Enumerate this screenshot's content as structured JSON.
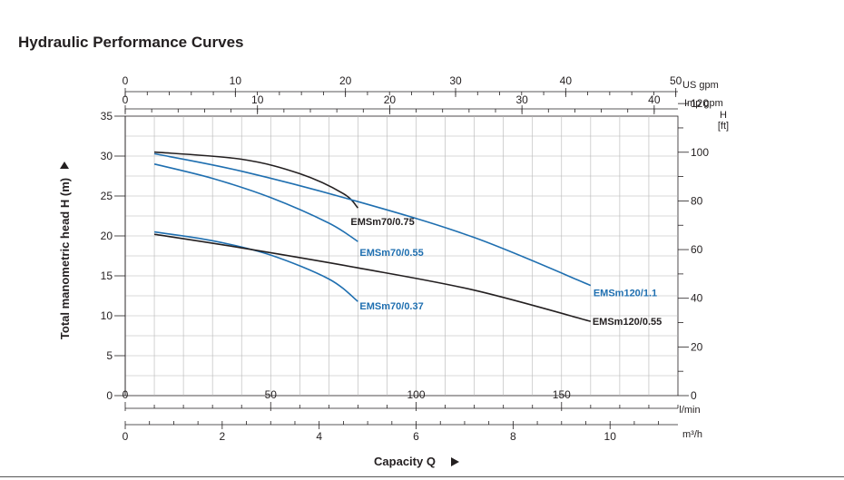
{
  "title": "Hydraulic Performance Curves",
  "chart_data": {
    "type": "line",
    "title": "Hydraulic Performance Curves",
    "xlabel": "Capacity Q",
    "ylabel": "Total manometric head H (m)",
    "xunit": "l/min",
    "xlim": [
      0,
      190
    ],
    "ylim": [
      0,
      35
    ],
    "y_right_label": "H",
    "y_right_unit": "[ft]",
    "grid": true,
    "x_ticks": [
      0,
      50,
      100,
      150
    ],
    "y_ticks": [
      0,
      5,
      10,
      15,
      20,
      25,
      30,
      35
    ],
    "secondary_axes": {
      "us_gpm": {
        "unit": "US gpm",
        "ticks": [
          0,
          10,
          20,
          30,
          40,
          50
        ]
      },
      "imp_gpm": {
        "unit": "Imp gpm",
        "ticks": [
          0,
          10,
          20,
          30,
          40
        ]
      },
      "m3h": {
        "unit": "m³/h",
        "ticks": [
          0,
          2,
          4,
          6,
          8,
          10
        ]
      },
      "feet": {
        "ticks": [
          0,
          20,
          40,
          60,
          80,
          100,
          120
        ]
      }
    },
    "series": [
      {
        "name": "EMSm70/0.75",
        "color": "#231f20",
        "x": [
          10,
          40,
          60,
          75,
          80
        ],
        "y": [
          30.5,
          29.6,
          27.8,
          25.3,
          23.5
        ]
      },
      {
        "name": "EMSm70/0.55",
        "color": "#1f6fb0",
        "x": [
          10,
          30,
          50,
          70,
          80
        ],
        "y": [
          29.0,
          27.2,
          24.8,
          21.6,
          19.3
        ]
      },
      {
        "name": "EMSm70/0.37",
        "color": "#1f6fb0",
        "x": [
          10,
          30,
          50,
          70,
          80
        ],
        "y": [
          20.5,
          19.4,
          17.6,
          14.6,
          11.8
        ]
      },
      {
        "name": "EMSm120/1.1",
        "color": "#1f6fb0",
        "x": [
          10,
          40,
          80,
          120,
          160
        ],
        "y": [
          30.3,
          28.1,
          24.3,
          19.8,
          13.8
        ]
      },
      {
        "name": "EMSm120/0.55",
        "color": "#231f20",
        "x": [
          10,
          40,
          80,
          120,
          160
        ],
        "y": [
          20.2,
          18.5,
          16.0,
          13.2,
          9.3
        ]
      }
    ]
  }
}
